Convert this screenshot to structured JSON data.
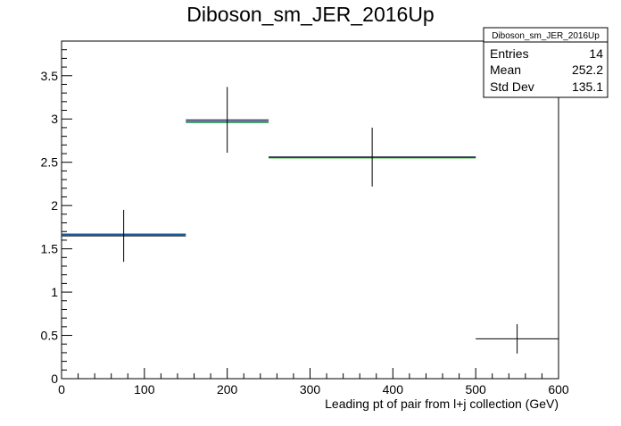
{
  "chart_data": {
    "type": "histogram",
    "title": "Diboson_sm_JER_2016Up",
    "xlabel": "Leading pt of pair from l+j collection (GeV)",
    "ylabel": "",
    "xlim": [
      0,
      600
    ],
    "ylim": [
      0,
      3.9
    ],
    "x_ticks": [
      0,
      100,
      200,
      300,
      400,
      500,
      600
    ],
    "y_ticks": [
      0,
      0.5,
      1,
      1.5,
      2,
      2.5,
      3,
      3.5
    ],
    "x_tick_labels": [
      "0",
      "100",
      "200",
      "300",
      "400",
      "500",
      "600"
    ],
    "y_tick_labels": [
      "0",
      "0.5",
      "1",
      "1.5",
      "2",
      "2.5",
      "3",
      "3.5"
    ],
    "grid": false,
    "bins": [
      {
        "x_low": 0,
        "x_high": 150,
        "x_center": 75,
        "value": 1.65,
        "alt_value": 1.67,
        "error": 0.3
      },
      {
        "x_low": 150,
        "x_high": 250,
        "x_center": 200,
        "value": 2.99,
        "alt_value": 2.97,
        "error": 0.38
      },
      {
        "x_low": 250,
        "x_high": 500,
        "x_center": 375,
        "value": 2.56,
        "alt_value": 2.56,
        "error": 0.34
      },
      {
        "x_low": 500,
        "x_high": 600,
        "x_center": 550,
        "value": 0.46,
        "alt_value": null,
        "error": 0.17
      }
    ],
    "colors": {
      "main": "#000000",
      "alt_blue": "#0000ff",
      "alt_green": "#00aa00"
    },
    "stats_box": {
      "title": "Diboson_sm_JER_2016Up",
      "legend_position": "top-right",
      "rows": [
        {
          "label": "Entries",
          "value": "14"
        },
        {
          "label": "Mean",
          "value": "252.2"
        },
        {
          "label": "Std Dev",
          "value": "135.1"
        }
      ]
    }
  }
}
